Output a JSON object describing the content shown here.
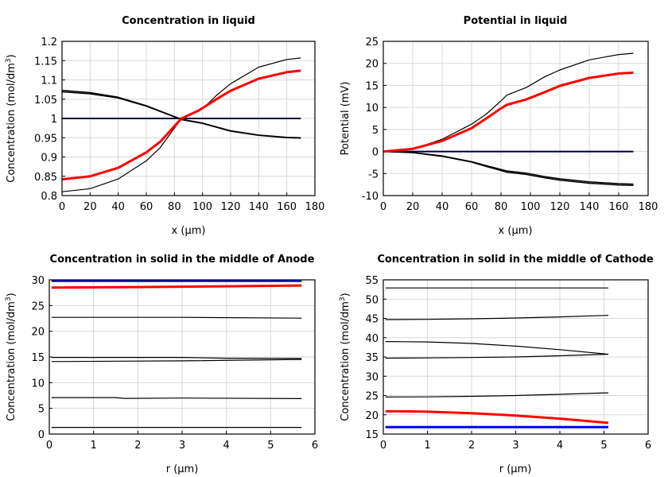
{
  "chart_data": [
    {
      "type": "line",
      "title": "Concentration in liquid",
      "xlabel": "x (µm)",
      "ylabel": "Concentration (mol/dm3)",
      "xlim": [
        0,
        180
      ],
      "ylim": [
        0.8,
        1.2
      ],
      "xticks": [
        "0",
        "20",
        "40",
        "60",
        "80",
        "100",
        "120",
        "140",
        "160",
        "180"
      ],
      "yticks": [
        "0.8",
        "0.85",
        "0.9",
        "0.95",
        "1",
        "1.05",
        "1.1",
        "1.15",
        "1.2"
      ],
      "grid": true,
      "series": [
        {
          "color": "#0000ff",
          "width": 2,
          "x": [
            0,
            170
          ],
          "y": [
            1.0,
            1.0
          ]
        },
        {
          "color": "#000000",
          "width": 1.5,
          "x": [
            0,
            170
          ],
          "y": [
            1.0,
            1.0
          ]
        },
        {
          "color": "#000000",
          "width": 1.2,
          "x": [
            0,
            20,
            40,
            60,
            70,
            80,
            85,
            90,
            100,
            110,
            120,
            140,
            160,
            170
          ],
          "y": [
            0.81,
            0.818,
            0.843,
            0.89,
            0.925,
            0.975,
            1.0,
            1.01,
            1.025,
            1.06,
            1.09,
            1.133,
            1.153,
            1.157
          ]
        },
        {
          "color": "#000000",
          "width": 1.5,
          "x": [
            0,
            20,
            40,
            60,
            80,
            85,
            100,
            120,
            140,
            160,
            170
          ],
          "y": [
            1.073,
            1.067,
            1.055,
            1.033,
            1.005,
            0.998,
            0.988,
            0.968,
            0.957,
            0.951,
            0.95
          ]
        },
        {
          "color": "#000000",
          "width": 1.5,
          "x": [
            0,
            20,
            40,
            60,
            80,
            85,
            100,
            120,
            140,
            160,
            170
          ],
          "y": [
            1.069,
            1.064,
            1.053,
            1.032,
            1.004,
            0.997,
            0.987,
            0.967,
            0.956,
            0.95,
            0.949
          ]
        },
        {
          "color": "#ff0000",
          "width": 3,
          "x": [
            0,
            20,
            40,
            60,
            70,
            80,
            85,
            97,
            110,
            120,
            140,
            160,
            170
          ],
          "y": [
            0.842,
            0.85,
            0.872,
            0.912,
            0.94,
            0.98,
            1.0,
            1.02,
            1.05,
            1.072,
            1.103,
            1.12,
            1.124
          ]
        }
      ]
    },
    {
      "type": "line",
      "title": "Potential in liquid",
      "xlabel": "x (µm)",
      "ylabel": "Potential (mV)",
      "xlim": [
        0,
        180
      ],
      "ylim": [
        -10,
        25
      ],
      "xticks": [
        "0",
        "20",
        "40",
        "60",
        "80",
        "100",
        "120",
        "140",
        "160",
        "180"
      ],
      "yticks": [
        "-10",
        "-5",
        "0",
        "5",
        "10",
        "15",
        "20",
        "25"
      ],
      "grid": true,
      "series": [
        {
          "color": "#0000ff",
          "width": 2,
          "x": [
            0,
            170
          ],
          "y": [
            0,
            0
          ]
        },
        {
          "color": "#000000",
          "width": 1.5,
          "x": [
            0,
            170
          ],
          "y": [
            0,
            0
          ]
        },
        {
          "color": "#000000",
          "width": 1.2,
          "x": [
            0,
            20,
            40,
            60,
            70,
            80,
            84,
            97,
            110,
            120,
            140,
            160,
            170
          ],
          "y": [
            0,
            0.5,
            2.8,
            6.2,
            8.5,
            11.5,
            12.8,
            14.5,
            17,
            18.5,
            20.8,
            22,
            22.3
          ]
        },
        {
          "color": "#000000",
          "width": 1.5,
          "x": [
            0,
            20,
            40,
            60,
            70,
            84,
            97,
            110,
            120,
            140,
            160,
            170
          ],
          "y": [
            0,
            -0.2,
            -1,
            -2.3,
            -3.2,
            -4.4,
            -4.9,
            -5.7,
            -6.2,
            -6.9,
            -7.3,
            -7.4
          ]
        },
        {
          "color": "#000000",
          "width": 1.5,
          "x": [
            0,
            20,
            40,
            60,
            70,
            84,
            97,
            110,
            120,
            140,
            160,
            170
          ],
          "y": [
            0,
            -0.25,
            -1.1,
            -2.4,
            -3.4,
            -4.7,
            -5.2,
            -6.0,
            -6.5,
            -7.2,
            -7.6,
            -7.7
          ]
        },
        {
          "color": "#ff0000",
          "width": 3,
          "x": [
            0,
            20,
            40,
            60,
            70,
            80,
            84,
            97,
            110,
            120,
            140,
            160,
            170
          ],
          "y": [
            0,
            0.6,
            2.4,
            5.3,
            7.5,
            9.8,
            10.6,
            11.8,
            13.5,
            14.9,
            16.7,
            17.7,
            17.9
          ]
        }
      ]
    },
    {
      "type": "line",
      "title": "Concentration in solid in the middle of Anode",
      "xlabel": "r (µm)",
      "ylabel": "Concentration (mol/dm3)",
      "xlim": [
        0,
        6
      ],
      "ylim": [
        0,
        30
      ],
      "xticks": [
        "0",
        "1",
        "2",
        "3",
        "4",
        "5",
        "6"
      ],
      "yticks": [
        "0",
        "5",
        "10",
        "15",
        "20",
        "25",
        "30"
      ],
      "grid": true,
      "series": [
        {
          "color": "#000000",
          "width": 1.2,
          "x": [
            0.05,
            5.7
          ],
          "y": [
            1.3,
            1.3
          ]
        },
        {
          "color": "#000000",
          "width": 1.2,
          "x": [
            0.05,
            1.5,
            1.7,
            3,
            5.7
          ],
          "y": [
            7.1,
            7.1,
            6.95,
            7.0,
            6.9
          ]
        },
        {
          "color": "#000000",
          "width": 1.2,
          "x": [
            0.05,
            3,
            5.7
          ],
          "y": [
            14.1,
            14.25,
            14.5
          ]
        },
        {
          "color": "#000000",
          "width": 1.2,
          "x": [
            0.05,
            3,
            4,
            5.7
          ],
          "y": [
            14.9,
            14.9,
            14.75,
            14.7
          ]
        },
        {
          "color": "#000000",
          "width": 1.2,
          "x": [
            0.05,
            3,
            5.7
          ],
          "y": [
            22.7,
            22.7,
            22.55
          ]
        },
        {
          "color": "#ff0000",
          "width": 3,
          "x": [
            0.05,
            2,
            4,
            5.7
          ],
          "y": [
            28.5,
            28.6,
            28.75,
            28.9
          ]
        },
        {
          "color": "#0000ff",
          "width": 3,
          "x": [
            0.05,
            5.7
          ],
          "y": [
            29.8,
            29.8
          ]
        }
      ]
    },
    {
      "type": "line",
      "title": "Concentration in solid in the middle of Cathode",
      "xlabel": "r (µm)",
      "ylabel": "Concentration (mol/dm3)",
      "xlim": [
        0,
        6
      ],
      "ylim": [
        15,
        55
      ],
      "xticks": [
        "0",
        "1",
        "2",
        "3",
        "4",
        "5",
        "6"
      ],
      "yticks": [
        "15",
        "20",
        "25",
        "30",
        "35",
        "40",
        "45",
        "50",
        "55"
      ],
      "grid": true,
      "series": [
        {
          "color": "#000000",
          "width": 1.2,
          "x": [
            0.05,
            5.1
          ],
          "y": [
            52.9,
            52.9
          ]
        },
        {
          "color": "#000000",
          "width": 1.2,
          "x": [
            0.05,
            1,
            2,
            3,
            4,
            5.1
          ],
          "y": [
            44.7,
            44.75,
            44.9,
            45.1,
            45.4,
            45.8
          ]
        },
        {
          "color": "#000000",
          "width": 1.2,
          "x": [
            0.05,
            1,
            2,
            3,
            4,
            5.1
          ],
          "y": [
            39,
            38.9,
            38.5,
            37.8,
            36.9,
            35.7
          ]
        },
        {
          "color": "#000000",
          "width": 1.2,
          "x": [
            0.05,
            1,
            2,
            3,
            4,
            5.1
          ],
          "y": [
            34.7,
            34.75,
            34.85,
            35.0,
            35.3,
            35.7
          ]
        },
        {
          "color": "#000000",
          "width": 1.2,
          "x": [
            0.05,
            1,
            2,
            3,
            4,
            5.1
          ],
          "y": [
            24.6,
            24.65,
            24.8,
            25.0,
            25.3,
            25.7
          ]
        },
        {
          "color": "#ff0000",
          "width": 3,
          "x": [
            0.05,
            0.5,
            1,
            2,
            3,
            4,
            5.1
          ],
          "y": [
            20.9,
            20.9,
            20.8,
            20.4,
            19.8,
            19.0,
            17.9
          ]
        },
        {
          "color": "#0000ff",
          "width": 3,
          "x": [
            0.05,
            5.1
          ],
          "y": [
            16.8,
            16.8
          ]
        }
      ]
    }
  ]
}
